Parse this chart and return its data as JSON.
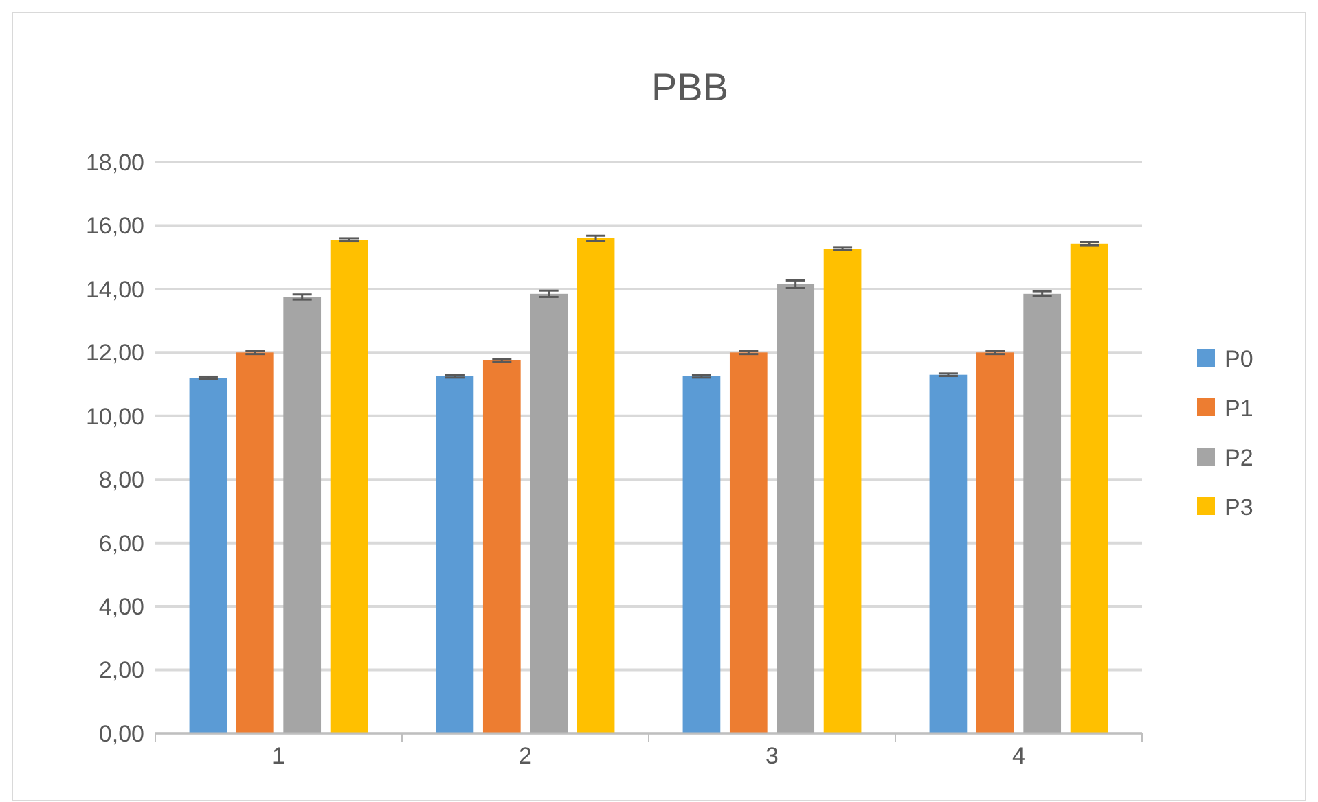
{
  "chart_data": {
    "type": "bar",
    "title": "PBB",
    "categories": [
      "1",
      "2",
      "3",
      "4"
    ],
    "series": [
      {
        "name": "P0",
        "color": "#5b9bd5",
        "values": [
          11.2,
          11.25,
          11.25,
          11.3
        ],
        "errors": [
          0.04,
          0.04,
          0.04,
          0.04
        ]
      },
      {
        "name": "P1",
        "color": "#ed7d31",
        "values": [
          12.0,
          11.75,
          12.0,
          12.0
        ],
        "errors": [
          0.05,
          0.05,
          0.05,
          0.05
        ]
      },
      {
        "name": "P2",
        "color": "#a5a5a5",
        "values": [
          13.75,
          13.85,
          14.15,
          13.85
        ],
        "errors": [
          0.08,
          0.1,
          0.12,
          0.08
        ]
      },
      {
        "name": "P3",
        "color": "#ffc000",
        "values": [
          15.55,
          15.6,
          15.27,
          15.43
        ],
        "errors": [
          0.05,
          0.08,
          0.05,
          0.05
        ]
      }
    ],
    "ylim": [
      0,
      18
    ],
    "yticks": [
      {
        "value": 0,
        "label": "0,00"
      },
      {
        "value": 2,
        "label": "2,00"
      },
      {
        "value": 4,
        "label": "4,00"
      },
      {
        "value": 6,
        "label": "6,00"
      },
      {
        "value": 8,
        "label": "8,00"
      },
      {
        "value": 10,
        "label": "10,00"
      },
      {
        "value": 12,
        "label": "12,00"
      },
      {
        "value": 14,
        "label": "14,00"
      },
      {
        "value": 16,
        "label": "16,00"
      },
      {
        "value": 18,
        "label": "18,00"
      }
    ],
    "grid": "y",
    "legend": "right"
  }
}
